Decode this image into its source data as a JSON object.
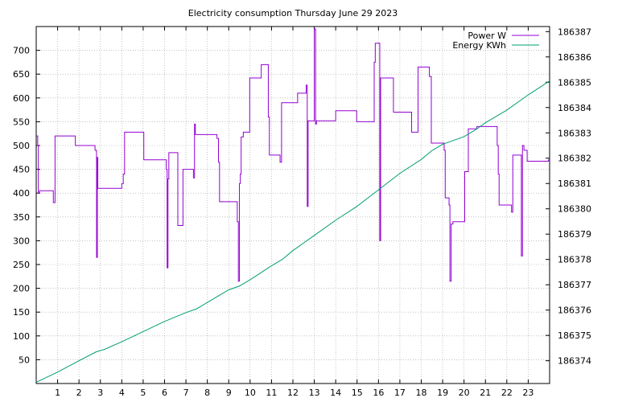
{
  "chart_data": {
    "type": "line",
    "title": "Electricity consumption Thursday June 29 2023",
    "xlabel": "",
    "ylabel": "",
    "grid": true,
    "legend_placement": "top-right",
    "xlim": [
      0,
      24
    ],
    "ylim": [
      0,
      750
    ],
    "y2lim": [
      186373.1,
      186387.2
    ],
    "x_ticks": [
      1,
      2,
      3,
      4,
      5,
      6,
      7,
      8,
      9,
      10,
      11,
      12,
      13,
      14,
      15,
      16,
      17,
      18,
      19,
      20,
      21,
      22,
      23
    ],
    "y_ticks": [
      50,
      100,
      150,
      200,
      250,
      300,
      350,
      400,
      450,
      500,
      550,
      600,
      650,
      700
    ],
    "y2_ticks": [
      186374,
      186375,
      186376,
      186377,
      186378,
      186379,
      186380,
      186381,
      186382,
      186383,
      186384,
      186385,
      186386,
      186387
    ],
    "series": [
      {
        "name": "Power W",
        "axis": "y",
        "color": "#9400d3",
        "points": [
          [
            0.0,
            520
          ],
          [
            0.07,
            520
          ],
          [
            0.07,
            500
          ],
          [
            0.1,
            500
          ],
          [
            0.1,
            400
          ],
          [
            0.15,
            400
          ],
          [
            0.15,
            405
          ],
          [
            0.8,
            405
          ],
          [
            0.8,
            380
          ],
          [
            0.88,
            380
          ],
          [
            0.88,
            520
          ],
          [
            1.83,
            520
          ],
          [
            1.83,
            500
          ],
          [
            2.75,
            500
          ],
          [
            2.75,
            490
          ],
          [
            2.82,
            490
          ],
          [
            2.82,
            265
          ],
          [
            2.86,
            265
          ],
          [
            2.86,
            475
          ],
          [
            2.88,
            475
          ],
          [
            2.88,
            410
          ],
          [
            4.0,
            410
          ],
          [
            4.0,
            420
          ],
          [
            4.07,
            420
          ],
          [
            4.07,
            440
          ],
          [
            4.13,
            440
          ],
          [
            4.13,
            528
          ],
          [
            5.03,
            528
          ],
          [
            5.03,
            470
          ],
          [
            6.08,
            470
          ],
          [
            6.08,
            450
          ],
          [
            6.12,
            450
          ],
          [
            6.12,
            243
          ],
          [
            6.16,
            243
          ],
          [
            6.16,
            430
          ],
          [
            6.2,
            430
          ],
          [
            6.2,
            485
          ],
          [
            6.62,
            485
          ],
          [
            6.62,
            332
          ],
          [
            6.86,
            332
          ],
          [
            6.86,
            450
          ],
          [
            7.35,
            450
          ],
          [
            7.35,
            432
          ],
          [
            7.4,
            432
          ],
          [
            7.4,
            545
          ],
          [
            7.44,
            545
          ],
          [
            7.44,
            523
          ],
          [
            8.45,
            523
          ],
          [
            8.45,
            515
          ],
          [
            8.52,
            515
          ],
          [
            8.52,
            465
          ],
          [
            8.57,
            465
          ],
          [
            8.57,
            382
          ],
          [
            9.4,
            382
          ],
          [
            9.4,
            340
          ],
          [
            9.45,
            340
          ],
          [
            9.45,
            215
          ],
          [
            9.5,
            215
          ],
          [
            9.5,
            420
          ],
          [
            9.54,
            420
          ],
          [
            9.54,
            440
          ],
          [
            9.58,
            440
          ],
          [
            9.58,
            518
          ],
          [
            9.68,
            518
          ],
          [
            9.68,
            528
          ],
          [
            9.98,
            528
          ],
          [
            9.98,
            642
          ],
          [
            10.52,
            642
          ],
          [
            10.52,
            670
          ],
          [
            10.85,
            670
          ],
          [
            10.85,
            560
          ],
          [
            10.9,
            560
          ],
          [
            10.9,
            480
          ],
          [
            11.4,
            480
          ],
          [
            11.4,
            465
          ],
          [
            11.47,
            465
          ],
          [
            11.47,
            590
          ],
          [
            12.22,
            590
          ],
          [
            12.22,
            610
          ],
          [
            12.62,
            610
          ],
          [
            12.62,
            627
          ],
          [
            12.67,
            627
          ],
          [
            12.67,
            372
          ],
          [
            12.71,
            372
          ],
          [
            12.71,
            552
          ],
          [
            13.0,
            552
          ],
          [
            13.0,
            745
          ],
          [
            13.06,
            745
          ],
          [
            13.06,
            545
          ],
          [
            13.1,
            545
          ],
          [
            13.1,
            552
          ],
          [
            14.0,
            552
          ],
          [
            14.0,
            573
          ],
          [
            14.98,
            573
          ],
          [
            14.98,
            550
          ],
          [
            15.8,
            550
          ],
          [
            15.8,
            675
          ],
          [
            15.85,
            675
          ],
          [
            15.85,
            715
          ],
          [
            16.06,
            715
          ],
          [
            16.06,
            300
          ],
          [
            16.1,
            300
          ],
          [
            16.1,
            642
          ],
          [
            16.7,
            642
          ],
          [
            16.7,
            570
          ],
          [
            17.55,
            570
          ],
          [
            17.55,
            528
          ],
          [
            17.85,
            528
          ],
          [
            17.85,
            665
          ],
          [
            18.38,
            665
          ],
          [
            18.38,
            645
          ],
          [
            18.47,
            645
          ],
          [
            18.47,
            505
          ],
          [
            19.07,
            505
          ],
          [
            19.07,
            490
          ],
          [
            19.12,
            490
          ],
          [
            19.12,
            390
          ],
          [
            19.3,
            390
          ],
          [
            19.3,
            375
          ],
          [
            19.34,
            375
          ],
          [
            19.34,
            215
          ],
          [
            19.4,
            215
          ],
          [
            19.4,
            335
          ],
          [
            19.48,
            335
          ],
          [
            19.48,
            340
          ],
          [
            20.03,
            340
          ],
          [
            20.03,
            445
          ],
          [
            20.2,
            445
          ],
          [
            20.2,
            535
          ],
          [
            20.6,
            535
          ],
          [
            20.6,
            540
          ],
          [
            20.9,
            540
          ],
          [
            20.9,
            540
          ],
          [
            21.55,
            540
          ],
          [
            21.55,
            500
          ],
          [
            21.6,
            500
          ],
          [
            21.6,
            440
          ],
          [
            21.64,
            440
          ],
          [
            21.64,
            375
          ],
          [
            22.22,
            375
          ],
          [
            22.22,
            360
          ],
          [
            22.28,
            360
          ],
          [
            22.28,
            480
          ],
          [
            22.68,
            480
          ],
          [
            22.68,
            268
          ],
          [
            22.73,
            268
          ],
          [
            22.73,
            500
          ],
          [
            22.8,
            500
          ],
          [
            22.8,
            490
          ],
          [
            22.95,
            490
          ],
          [
            22.95,
            467
          ],
          [
            23.95,
            467
          ],
          [
            23.95,
            470
          ],
          [
            24.0,
            470
          ]
        ]
      },
      {
        "name": "Energy KWh",
        "axis": "y2",
        "color": "#009e73",
        "points": [
          [
            0.0,
            186373.15
          ],
          [
            1.0,
            186373.55
          ],
          [
            2.0,
            186374.0
          ],
          [
            2.8,
            186374.35
          ],
          [
            3.2,
            186374.45
          ],
          [
            4.0,
            186374.75
          ],
          [
            5.0,
            186375.15
          ],
          [
            6.0,
            186375.55
          ],
          [
            7.0,
            186375.9
          ],
          [
            7.5,
            186376.05
          ],
          [
            8.0,
            186376.3
          ],
          [
            8.5,
            186376.55
          ],
          [
            9.0,
            186376.8
          ],
          [
            9.5,
            186376.95
          ],
          [
            10.0,
            186377.2
          ],
          [
            11.0,
            186377.75
          ],
          [
            11.5,
            186378.0
          ],
          [
            12.0,
            186378.35
          ],
          [
            12.5,
            186378.65
          ],
          [
            13.0,
            186378.95
          ],
          [
            14.0,
            186379.55
          ],
          [
            15.0,
            186380.1
          ],
          [
            16.0,
            186380.75
          ],
          [
            17.0,
            186381.4
          ],
          [
            18.0,
            186381.95
          ],
          [
            18.5,
            186382.3
          ],
          [
            19.0,
            186382.55
          ],
          [
            19.5,
            186382.7
          ],
          [
            20.0,
            186382.85
          ],
          [
            20.5,
            186383.1
          ],
          [
            21.0,
            186383.4
          ],
          [
            21.5,
            186383.65
          ],
          [
            22.0,
            186383.9
          ],
          [
            23.0,
            186384.5
          ],
          [
            24.0,
            186385.05
          ]
        ]
      }
    ]
  }
}
